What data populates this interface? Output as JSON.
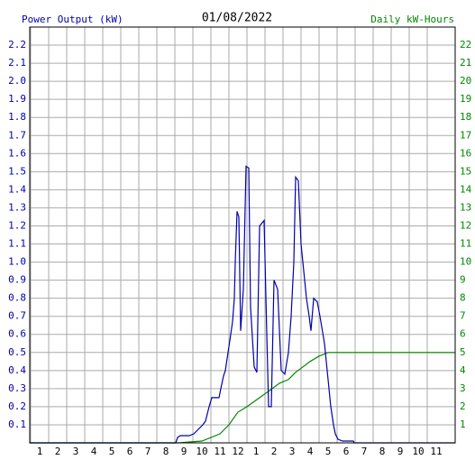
{
  "chart_data": {
    "type": "line",
    "title": "01/08/2022",
    "y_label": "Power Output (kW)",
    "y2_label": "Daily kW-Hours",
    "xlim": [
      0.45,
      24.05
    ],
    "xticks": [
      1,
      2,
      3,
      4,
      5,
      6,
      7,
      8,
      9,
      10,
      11,
      12,
      {
        "value": 13,
        "label": "1"
      },
      {
        "value": 14,
        "label": "2"
      },
      {
        "value": 15,
        "label": "3"
      },
      {
        "value": 16,
        "label": "4"
      },
      {
        "value": 17,
        "label": "5"
      },
      {
        "value": 18,
        "label": "6"
      },
      {
        "value": 19,
        "label": "7"
      },
      {
        "value": 20,
        "label": "8"
      },
      {
        "value": 21,
        "label": "9"
      },
      {
        "value": 22,
        "label": "10"
      },
      {
        "value": 23,
        "label": "11"
      }
    ],
    "ylim": [
      0,
      2.3
    ],
    "yticks": [
      0.1,
      0.2,
      0.3,
      0.4,
      0.5,
      0.6,
      0.7,
      0.8,
      0.9,
      {
        "value": 1,
        "label": "1.0"
      },
      1.1,
      1.2,
      1.3,
      1.4,
      1.5,
      1.6,
      1.7,
      1.8,
      1.9,
      {
        "value": 2,
        "label": "2.0"
      },
      2.1,
      2.2
    ],
    "y2lim": [
      0,
      23
    ],
    "y2ticks": [
      1,
      2,
      3,
      4,
      5,
      6,
      7,
      8,
      9,
      10,
      11,
      12,
      13,
      14,
      15,
      16,
      17,
      18,
      19,
      20,
      21,
      22
    ],
    "grid": true,
    "series": [
      {
        "color": "#0000aa",
        "x": [
          0.45,
          8.55,
          8.65,
          8.8,
          9.3,
          9.55,
          10.05,
          10.2,
          10.4,
          10.55,
          10.95,
          11.05,
          11.2,
          11.3,
          11.45,
          11.6,
          11.7,
          11.8,
          11.85,
          11.95,
          12.05,
          12.15,
          12.3,
          12.45,
          12.6,
          12.7,
          12.9,
          13.05,
          13.2,
          13.45,
          13.6,
          13.7,
          13.85,
          14.0,
          14.2,
          14.4,
          14.6,
          14.8,
          14.95,
          15.1,
          15.2,
          15.35,
          15.5,
          15.65,
          15.8,
          15.95,
          16.05,
          16.2,
          16.4,
          16.55,
          16.8,
          17.0,
          17.15,
          17.3,
          17.4,
          17.55,
          17.8,
          18.4,
          18.45,
          24.05
        ],
        "values": [
          0,
          0,
          0.03,
          0.04,
          0.04,
          0.05,
          0.1,
          0.12,
          0.2,
          0.25,
          0.25,
          0.3,
          0.37,
          0.4,
          0.5,
          0.6,
          0.67,
          0.8,
          1.0,
          1.28,
          1.25,
          0.62,
          0.85,
          1.53,
          1.52,
          0.75,
          0.42,
          0.39,
          1.2,
          1.23,
          0.6,
          0.2,
          0.2,
          0.9,
          0.85,
          0.4,
          0.38,
          0.5,
          0.7,
          1.0,
          1.47,
          1.45,
          1.1,
          0.95,
          0.8,
          0.7,
          0.62,
          0.8,
          0.78,
          0.7,
          0.55,
          0.35,
          0.2,
          0.1,
          0.05,
          0.02,
          0.01,
          0.01,
          0,
          0
        ]
      },
      {
        "color": "#008800",
        "axis": "y2",
        "x": [
          0.45,
          8.7,
          10,
          11,
          11.5,
          12,
          12.5,
          13.2,
          13.9,
          14.3,
          14.8,
          15.2,
          15.6,
          16,
          16.5,
          17,
          24.05
        ],
        "values": [
          0,
          0,
          0.1,
          0.5,
          1.0,
          1.7,
          2.0,
          2.5,
          3.0,
          3.3,
          3.5,
          3.9,
          4.2,
          4.5,
          4.8,
          5.0,
          5.0
        ]
      }
    ]
  }
}
